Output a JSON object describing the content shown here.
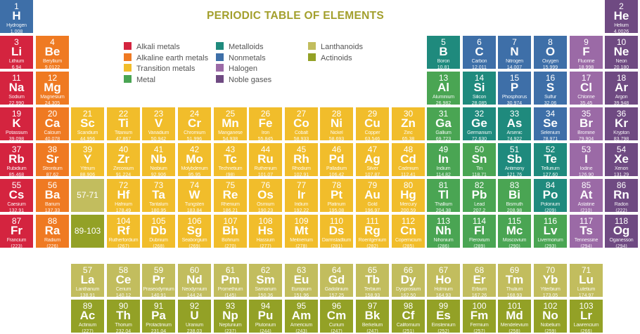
{
  "title": "PERIODIC TABLE OF ELEMENTS",
  "legend": [
    {
      "key": "alkali",
      "label": "Alkali metals",
      "color": "#d4243f"
    },
    {
      "key": "alkaline",
      "label": "Alkaline earth metals",
      "color": "#ef7a22"
    },
    {
      "key": "transition",
      "label": "Transition metals",
      "color": "#f1bd2b"
    },
    {
      "key": "metal",
      "label": "Metal",
      "color": "#4aa553"
    },
    {
      "key": "metalloid",
      "label": "Metalloids",
      "color": "#1f8a7d"
    },
    {
      "key": "nonmetal",
      "label": "Nonmetals",
      "color": "#3e6fa8"
    },
    {
      "key": "halogen",
      "label": "Halogen",
      "color": "#9b6aa6"
    },
    {
      "key": "noble",
      "label": "Noble gases",
      "color": "#6f4a82"
    },
    {
      "key": "lanthanoid",
      "label": "Lanthanoids",
      "color": "#c2bd5e"
    },
    {
      "key": "actinoid",
      "label": "Actinoids",
      "color": "#93a126"
    }
  ],
  "placeholders": [
    {
      "label": "57-71",
      "category": "lanthanoid"
    },
    {
      "label": "89-103",
      "category": "actinoid"
    }
  ],
  "elements": [
    [
      "1",
      "H",
      "Hydrogen",
      "1.008",
      "nonmetal"
    ],
    [
      "2",
      "He",
      "Helium",
      "4.0026",
      "noble"
    ],
    [
      "3",
      "Li",
      "Lithium",
      "6.94",
      "alkali"
    ],
    [
      "4",
      "Be",
      "Beryllium",
      "9.0122",
      "alkaline"
    ],
    [
      "5",
      "B",
      "Boron",
      "10.81",
      "metalloid"
    ],
    [
      "6",
      "C",
      "Carbon",
      "12.011",
      "nonmetal"
    ],
    [
      "7",
      "N",
      "Nitrogen",
      "14.007",
      "nonmetal"
    ],
    [
      "8",
      "O",
      "Oxygen",
      "15.999",
      "nonmetal"
    ],
    [
      "9",
      "F",
      "Fluorine",
      "18.998",
      "halogen"
    ],
    [
      "10",
      "Ne",
      "Neon",
      "20.180",
      "noble"
    ],
    [
      "11",
      "Na",
      "Sodium",
      "22.990",
      "alkali"
    ],
    [
      "12",
      "Mg",
      "Magnesium",
      "24.305",
      "alkaline"
    ],
    [
      "13",
      "Al",
      "Aluminium",
      "26.982",
      "metal"
    ],
    [
      "14",
      "Si",
      "Silicon",
      "28.085",
      "metalloid"
    ],
    [
      "15",
      "P",
      "Phosphorus",
      "30.974",
      "nonmetal"
    ],
    [
      "16",
      "S",
      "Sulfur",
      "32.06",
      "nonmetal"
    ],
    [
      "17",
      "Cl",
      "Chlorine",
      "35.45",
      "halogen"
    ],
    [
      "18",
      "Ar",
      "Argon",
      "39.948",
      "noble"
    ],
    [
      "19",
      "K",
      "Potassium",
      "39.098",
      "alkali"
    ],
    [
      "20",
      "Ca",
      "Calcium",
      "40.078",
      "alkaline"
    ],
    [
      "21",
      "Sc",
      "Scandium",
      "44.956",
      "transition"
    ],
    [
      "22",
      "Ti",
      "Titanium",
      "47.867",
      "transition"
    ],
    [
      "23",
      "V",
      "Vanadium",
      "50.942",
      "transition"
    ],
    [
      "24",
      "Cr",
      "Chromium",
      "51.996",
      "transition"
    ],
    [
      "25",
      "Mn",
      "Manganese",
      "54.938",
      "transition"
    ],
    [
      "26",
      "Fe",
      "Iron",
      "55.845",
      "transition"
    ],
    [
      "27",
      "Co",
      "Cobalt",
      "58.933",
      "transition"
    ],
    [
      "28",
      "Ni",
      "Nickel",
      "58.693",
      "transition"
    ],
    [
      "29",
      "Cu",
      "Copper",
      "63.546",
      "transition"
    ],
    [
      "30",
      "Zn",
      "Zinc",
      "65.38",
      "transition"
    ],
    [
      "31",
      "Ga",
      "Gallium",
      "69.723",
      "metal"
    ],
    [
      "32",
      "Ge",
      "Germanium",
      "72.630",
      "metalloid"
    ],
    [
      "33",
      "As",
      "Arsenic",
      "74.922",
      "metalloid"
    ],
    [
      "34",
      "Se",
      "Selenium",
      "78.971",
      "nonmetal"
    ],
    [
      "35",
      "Br",
      "Bromine",
      "79.904",
      "halogen"
    ],
    [
      "36",
      "Kr",
      "Krypton",
      "83.798",
      "noble"
    ],
    [
      "37",
      "Rb",
      "Rubidium",
      "85.468",
      "alkali"
    ],
    [
      "38",
      "Sr",
      "Strontium",
      "87.62",
      "alkaline"
    ],
    [
      "39",
      "Y",
      "Yttrium",
      "88.906",
      "transition"
    ],
    [
      "40",
      "Zr",
      "Zirconium",
      "91.224",
      "transition"
    ],
    [
      "41",
      "Nb",
      "Niobium",
      "92.906",
      "transition"
    ],
    [
      "42",
      "Mo",
      "Molybdenum",
      "95.95",
      "transition"
    ],
    [
      "43",
      "Tc",
      "Technetium",
      "(98)",
      "transition"
    ],
    [
      "44",
      "Ru",
      "Ruthenium",
      "101.07",
      "transition"
    ],
    [
      "45",
      "Rh",
      "Rhodium",
      "102.91",
      "transition"
    ],
    [
      "46",
      "Pd",
      "Palladium",
      "106.42",
      "transition"
    ],
    [
      "47",
      "Ag",
      "Silver",
      "107.87",
      "transition"
    ],
    [
      "48",
      "Cd",
      "Cadmium",
      "112.41",
      "transition"
    ],
    [
      "49",
      "In",
      "Indium",
      "114.82",
      "metal"
    ],
    [
      "50",
      "Sn",
      "Tin",
      "118.71",
      "metal"
    ],
    [
      "51",
      "Sb",
      "Antimony",
      "121.76",
      "metalloid"
    ],
    [
      "52",
      "Te",
      "Tellurium",
      "127.60",
      "metalloid"
    ],
    [
      "53",
      "I",
      "Iodine",
      "126.90",
      "halogen"
    ],
    [
      "54",
      "Xe",
      "Xenon",
      "131.29",
      "noble"
    ],
    [
      "55",
      "Cs",
      "Caesium",
      "132.91",
      "alkali"
    ],
    [
      "56",
      "Ba",
      "Barium",
      "137.33",
      "alkaline"
    ],
    [
      "57",
      "La",
      "Lanthanum",
      "138.91",
      "lanthanoid"
    ],
    [
      "58",
      "Ce",
      "Cerium",
      "140.12",
      "lanthanoid"
    ],
    [
      "59",
      "Pr",
      "Praseodymium",
      "140.91",
      "lanthanoid"
    ],
    [
      "60",
      "Nd",
      "Neodymium",
      "144.24",
      "lanthanoid"
    ],
    [
      "61",
      "Pm",
      "Promethium",
      "(145)",
      "lanthanoid"
    ],
    [
      "62",
      "Sm",
      "Samarium",
      "150.36",
      "lanthanoid"
    ],
    [
      "63",
      "Eu",
      "Europium",
      "151.96",
      "lanthanoid"
    ],
    [
      "64",
      "Gd",
      "Gadolinium",
      "157.25",
      "lanthanoid"
    ],
    [
      "65",
      "Tb",
      "Terbium",
      "158.93",
      "lanthanoid"
    ],
    [
      "66",
      "Dy",
      "Dysprosium",
      "162.50",
      "lanthanoid"
    ],
    [
      "67",
      "Ho",
      "Holmium",
      "164.93",
      "lanthanoid"
    ],
    [
      "68",
      "Er",
      "Erbium",
      "167.26",
      "lanthanoid"
    ],
    [
      "69",
      "Tm",
      "Thulium",
      "168.93",
      "lanthanoid"
    ],
    [
      "70",
      "Yb",
      "Ytterbium",
      "173.05",
      "lanthanoid"
    ],
    [
      "71",
      "Lu",
      "Lutetium",
      "174.97",
      "lanthanoid"
    ],
    [
      "72",
      "Hf",
      "Hafnium",
      "178.49",
      "transition"
    ],
    [
      "73",
      "Ta",
      "Tantalum",
      "180.95",
      "transition"
    ],
    [
      "74",
      "W",
      "Tungsten",
      "183.84",
      "transition"
    ],
    [
      "75",
      "Re",
      "Rhenium",
      "186.21",
      "transition"
    ],
    [
      "76",
      "Os",
      "Osmium",
      "190.23",
      "transition"
    ],
    [
      "77",
      "Ir",
      "Iridium",
      "192.22",
      "transition"
    ],
    [
      "78",
      "Pt",
      "Platinum",
      "195.08",
      "transition"
    ],
    [
      "79",
      "Au",
      "Gold",
      "196.97",
      "transition"
    ],
    [
      "80",
      "Hg",
      "Mercury",
      "200.59",
      "transition"
    ],
    [
      "81",
      "Tl",
      "Thallium",
      "204.38",
      "metal"
    ],
    [
      "82",
      "Pb",
      "Lead",
      "207.2",
      "metal"
    ],
    [
      "83",
      "Bi",
      "Bismuth",
      "208.98",
      "metal"
    ],
    [
      "84",
      "Po",
      "Polonium",
      "(209)",
      "metalloid"
    ],
    [
      "85",
      "At",
      "Astatine",
      "(210)",
      "halogen"
    ],
    [
      "86",
      "Rn",
      "Radon",
      "(222)",
      "noble"
    ],
    [
      "87",
      "Fr",
      "Francium",
      "(223)",
      "alkali"
    ],
    [
      "88",
      "Ra",
      "Radium",
      "(226)",
      "alkaline"
    ],
    [
      "89",
      "Ac",
      "Actinium",
      "(227)",
      "actinoid"
    ],
    [
      "90",
      "Th",
      "Thorium",
      "232.04",
      "actinoid"
    ],
    [
      "91",
      "Pa",
      "Protactinium",
      "231.04",
      "actinoid"
    ],
    [
      "92",
      "U",
      "Uranium",
      "238.03",
      "actinoid"
    ],
    [
      "93",
      "Np",
      "Neptunium",
      "(237)",
      "actinoid"
    ],
    [
      "94",
      "Pu",
      "Plutonium",
      "(244)",
      "actinoid"
    ],
    [
      "95",
      "Am",
      "Americium",
      "(243)",
      "actinoid"
    ],
    [
      "96",
      "Cm",
      "Curium",
      "(247)",
      "actinoid"
    ],
    [
      "97",
      "Bk",
      "Berkelium",
      "(247)",
      "actinoid"
    ],
    [
      "98",
      "Cf",
      "Californium",
      "(251)",
      "actinoid"
    ],
    [
      "99",
      "Es",
      "Einsteinium",
      "(252)",
      "actinoid"
    ],
    [
      "100",
      "Fm",
      "Fermium",
      "(257)",
      "actinoid"
    ],
    [
      "101",
      "Md",
      "Mendelevium",
      "(258)",
      "actinoid"
    ],
    [
      "102",
      "No",
      "Nobelium",
      "(259)",
      "actinoid"
    ],
    [
      "103",
      "Lr",
      "Lawrencium",
      "(266)",
      "actinoid"
    ],
    [
      "104",
      "Rf",
      "Rutherfordium",
      "(267)",
      "transition"
    ],
    [
      "105",
      "Db",
      "Dubnium",
      "(268)",
      "transition"
    ],
    [
      "106",
      "Sg",
      "Seaborgium",
      "(269)",
      "transition"
    ],
    [
      "107",
      "Bh",
      "Bohrium",
      "(270)",
      "transition"
    ],
    [
      "108",
      "Hs",
      "Hassium",
      "(277)",
      "transition"
    ],
    [
      "109",
      "Mt",
      "Meitnerium",
      "(278)",
      "transition"
    ],
    [
      "110",
      "Ds",
      "Darmstadtium",
      "(281)",
      "transition"
    ],
    [
      "111",
      "Rg",
      "Roentgenium",
      "(282)",
      "transition"
    ],
    [
      "112",
      "Cn",
      "Copernicium",
      "(285)",
      "transition"
    ],
    [
      "113",
      "Nh",
      "Nihonium",
      "(286)",
      "metal"
    ],
    [
      "114",
      "Fl",
      "Flerovium",
      "(289)",
      "metal"
    ],
    [
      "115",
      "Mc",
      "Moscovium",
      "(290)",
      "metal"
    ],
    [
      "116",
      "Lv",
      "Livermorium",
      "(293)",
      "metal"
    ],
    [
      "117",
      "Ts",
      "Tennessine",
      "(294)",
      "halogen"
    ],
    [
      "118",
      "Og",
      "Oganesson",
      "(294)",
      "noble"
    ]
  ]
}
